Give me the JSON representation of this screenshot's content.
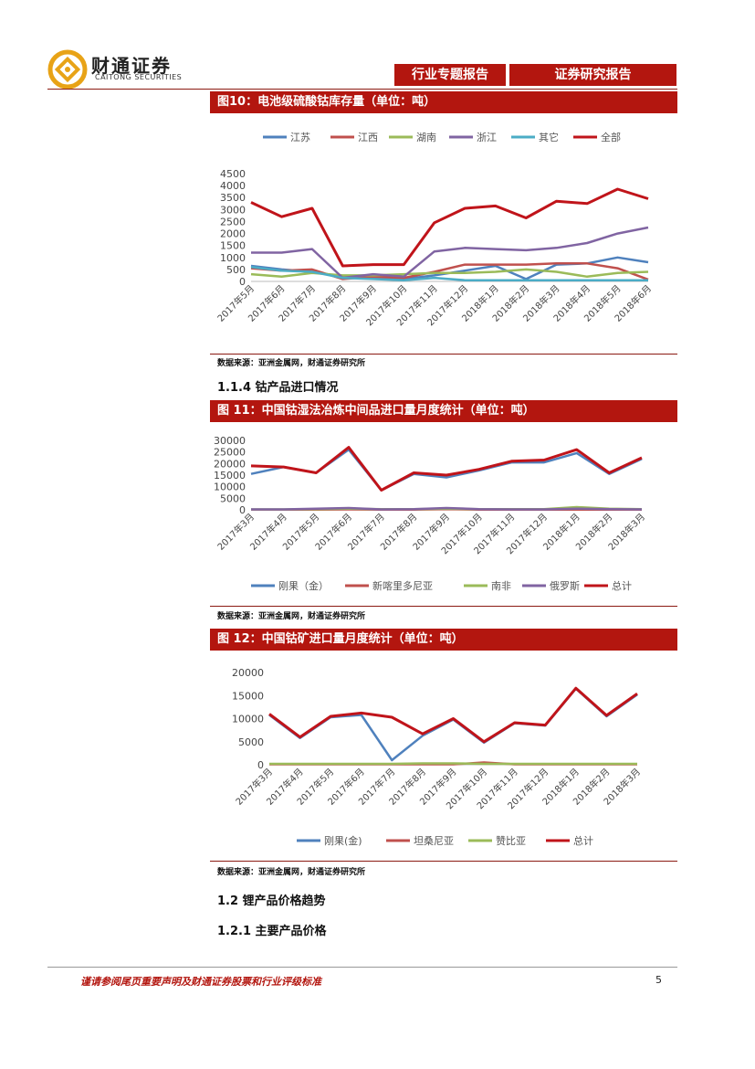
{
  "header": {
    "logo_cn": "财通证券",
    "logo_en": "CAITONG SECURITIES",
    "tab_left": "行业专题报告",
    "tab_right": "证券研究报告"
  },
  "figures": [
    {
      "title": "图10：电池级硫酸钴库存量（单位：吨）",
      "source": "数据来源：亚洲金属网，财通证券研究所"
    },
    {
      "title": "图 11：中国钴湿法冶炼中间品进口量月度统计（单位：吨）",
      "source": "数据来源：亚洲金属网，财通证券研究所"
    },
    {
      "title": "图 12：中国钴矿进口量月度统计（单位：吨）",
      "source": "数据来源：亚洲金属网，财通证券研究所"
    }
  ],
  "headings": {
    "h114": "1.1.4  钴产品进口情况",
    "h12": "1.2  锂产品价格趋势",
    "h121": "1.2.1  主要产品价格"
  },
  "footer": {
    "text": "谨请参阅尾页重要声明及财通证券股票和行业评级标准",
    "page": "5"
  },
  "chart_data": [
    {
      "type": "line",
      "categories": [
        "2017年5月",
        "2017年6月",
        "2017年7月",
        "2017年8月",
        "2017年9月",
        "2017年10月",
        "2017年11月",
        "2017年12月",
        "2018年1月",
        "2018年2月",
        "2018年3月",
        "2018年4月",
        "2018年5月",
        "2018年6月"
      ],
      "ylim": [
        0,
        4500
      ],
      "yticks": [
        0,
        500,
        1000,
        1500,
        2000,
        2500,
        3000,
        3500,
        4000,
        4500
      ],
      "legend_position": "top",
      "series": [
        {
          "name": "江苏",
          "color": "#4f81bd",
          "values": [
            650,
            500,
            400,
            200,
            150,
            100,
            250,
            450,
            650,
            100,
            700,
            750,
            1000,
            800
          ]
        },
        {
          "name": "江西",
          "color": "#c0504d",
          "values": [
            550,
            450,
            500,
            100,
            200,
            150,
            400,
            700,
            700,
            700,
            750,
            750,
            550,
            80
          ]
        },
        {
          "name": "湖南",
          "color": "#9bbb59",
          "values": [
            300,
            200,
            350,
            250,
            250,
            300,
            350,
            350,
            400,
            500,
            400,
            200,
            350,
            400
          ]
        },
        {
          "name": "浙江",
          "color": "#8064a2",
          "values": [
            1200,
            1200,
            1350,
            150,
            300,
            200,
            1250,
            1400,
            1350,
            1300,
            1400,
            1600,
            2000,
            2250
          ]
        },
        {
          "name": "其它",
          "color": "#4bacc6",
          "values": [
            600,
            450,
            400,
            150,
            100,
            50,
            150,
            50,
            50,
            50,
            50,
            50,
            50,
            50
          ]
        },
        {
          "name": "全部",
          "color": "#c0141a",
          "values": [
            3300,
            2700,
            3050,
            650,
            700,
            700,
            2450,
            3050,
            3150,
            2650,
            3350,
            3250,
            3850,
            3450
          ]
        }
      ]
    },
    {
      "type": "line",
      "categories": [
        "2017年3月",
        "2017年4月",
        "2017年5月",
        "2017年6月",
        "2017年7月",
        "2017年8月",
        "2017年9月",
        "2017年10月",
        "2017年11月",
        "2017年12月",
        "2018年1月",
        "2018年2月",
        "2018年3月"
      ],
      "ylim": [
        0,
        30000
      ],
      "yticks": [
        0,
        5000,
        10000,
        15000,
        20000,
        25000,
        30000
      ],
      "legend_position": "bottom",
      "series": [
        {
          "name": "刚果（金）",
          "color": "#4f81bd",
          "values": [
            15500,
            18500,
            16000,
            26000,
            8500,
            15500,
            14000,
            17000,
            20500,
            20500,
            24500,
            15500,
            22000
          ]
        },
        {
          "name": "新喀里多尼亚",
          "color": "#c0504d",
          "values": [
            100,
            100,
            100,
            200,
            100,
            100,
            300,
            100,
            100,
            100,
            100,
            100,
            100
          ]
        },
        {
          "name": "南非",
          "color": "#9bbb59",
          "values": [
            200,
            200,
            300,
            500,
            300,
            300,
            500,
            300,
            300,
            300,
            1200,
            500,
            300
          ]
        },
        {
          "name": "俄罗斯",
          "color": "#8064a2",
          "values": [
            200,
            200,
            500,
            800,
            200,
            300,
            800,
            300,
            200,
            200,
            500,
            300,
            200
          ]
        },
        {
          "name": "总计",
          "color": "#c0141a",
          "values": [
            19000,
            18500,
            16000,
            27000,
            8500,
            16000,
            15000,
            17500,
            21000,
            21500,
            26000,
            16000,
            22500
          ]
        }
      ]
    },
    {
      "type": "line",
      "categories": [
        "2017年3月",
        "2017年4月",
        "2017年5月",
        "2017年6月",
        "2017年7月",
        "2017年8月",
        "2017年9月",
        "2017年10月",
        "2017年11月",
        "2017年12月",
        "2018年1月",
        "2018年2月",
        "2018年3月"
      ],
      "ylim": [
        0,
        20000
      ],
      "yticks": [
        0,
        5000,
        10000,
        15000,
        20000
      ],
      "legend_position": "bottom",
      "series": [
        {
          "name": "刚果(金)",
          "color": "#4f81bd",
          "values": [
            10800,
            5800,
            10300,
            10800,
            1000,
            6300,
            9800,
            4800,
            9000,
            8500,
            16500,
            10500,
            15200
          ]
        },
        {
          "name": "坦桑尼亚",
          "color": "#c0504d",
          "values": [
            100,
            100,
            100,
            100,
            100,
            100,
            100,
            500,
            100,
            100,
            100,
            100,
            100
          ]
        },
        {
          "name": "赞比亚",
          "color": "#9bbb59",
          "values": [
            200,
            200,
            200,
            200,
            200,
            300,
            300,
            200,
            200,
            200,
            200,
            200,
            200
          ]
        },
        {
          "name": "总计",
          "color": "#c0141a",
          "values": [
            11000,
            6000,
            10500,
            11200,
            10300,
            6700,
            10000,
            5000,
            9100,
            8600,
            16600,
            10700,
            15400
          ]
        }
      ]
    }
  ]
}
